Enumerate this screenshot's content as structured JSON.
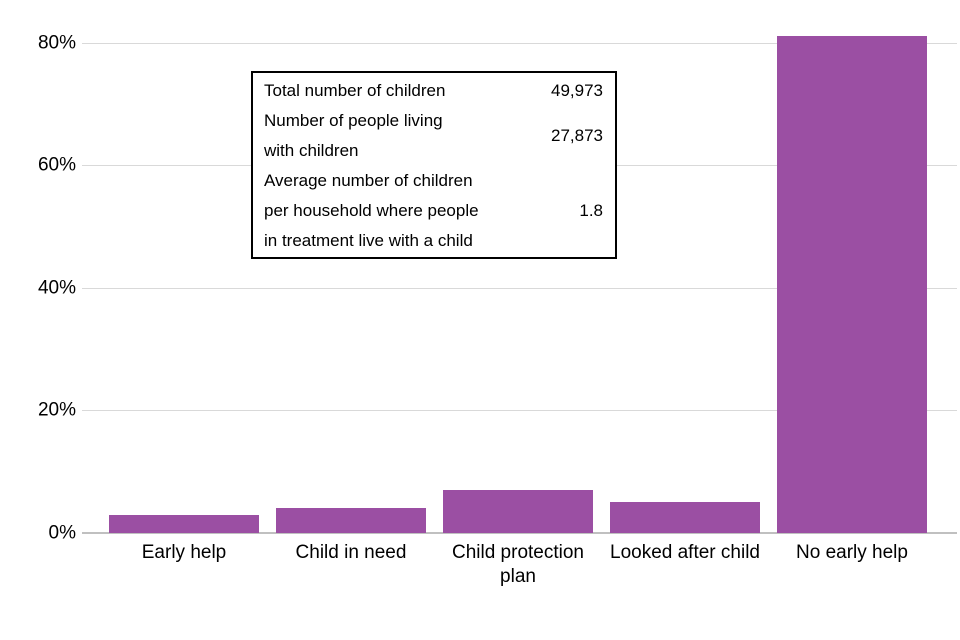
{
  "chart_data": {
    "type": "bar",
    "title": "",
    "xlabel": "",
    "ylabel": "",
    "categories": [
      "Early help",
      "Child in need",
      "Child protection plan",
      "Looked after child",
      "No early help"
    ],
    "values": [
      3,
      4,
      7,
      5,
      81
    ],
    "unit": "%",
    "ylim": [
      0,
      87
    ],
    "y_ticks": [
      {
        "value": 0,
        "label": "0%"
      },
      {
        "value": 20,
        "label": "20%"
      },
      {
        "value": 40,
        "label": "40%"
      },
      {
        "value": 60,
        "label": "60%"
      },
      {
        "value": 80,
        "label": "80%"
      }
    ],
    "grid": "horizontal",
    "legend_position": "none",
    "bar_color": "#9b4fa3",
    "gridline_color": "#d9d9d9",
    "axis_line_color": "#c0c0c0",
    "text_color": "#000000"
  },
  "info_box": {
    "rows": [
      {
        "label": "Total number of children",
        "value": "49,973"
      },
      {
        "label": "Number of people living\nwith children",
        "value": "27,873"
      },
      {
        "label": "Average number of children\nper household where people\nin treatment live with a child",
        "value": "1.8"
      }
    ]
  }
}
